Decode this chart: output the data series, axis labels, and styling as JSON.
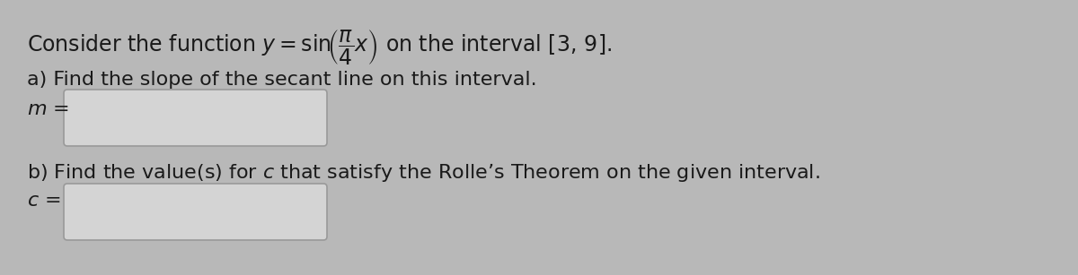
{
  "bg_color": "#b8b8b8",
  "text_color": "#1a1a1a",
  "part_a_label": "a) Find the slope of the secant line on this interval.",
  "m_label": "m =",
  "part_b_label": "b) Find the value(s) for $c$ that satisfy the Rolle’s Theorem on the given interval.",
  "c_label": "c =",
  "box_facecolor": "#d4d4d4",
  "box_edgecolor": "#999999",
  "font_size_title": 17,
  "font_size_body": 16,
  "font_size_label": 16
}
